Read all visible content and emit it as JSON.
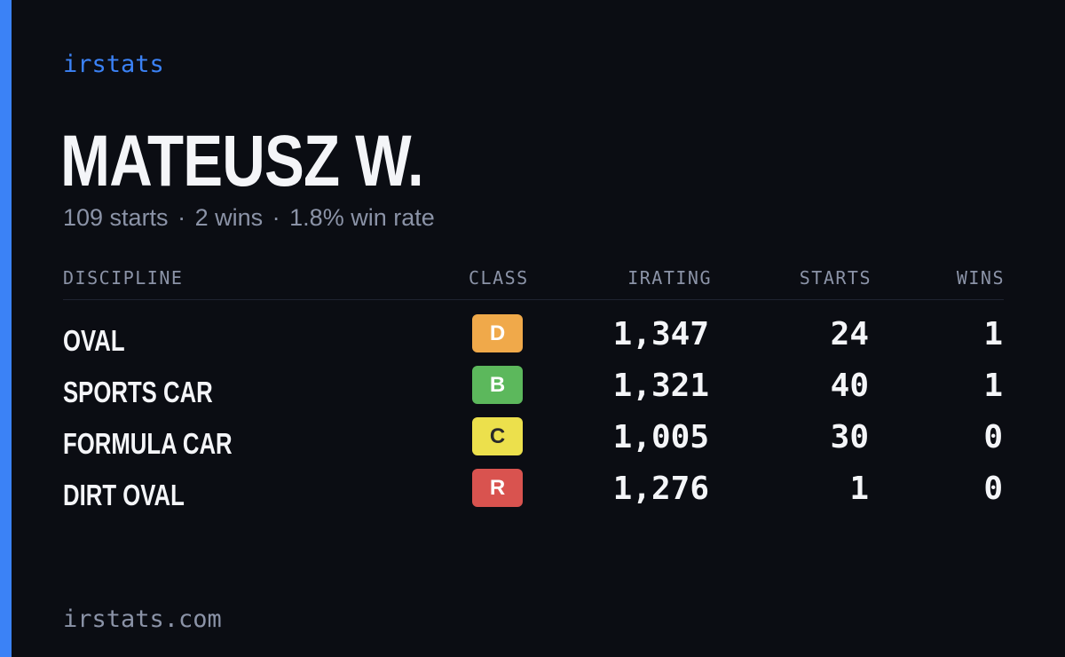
{
  "brand": "irstats",
  "player": {
    "name": "MATEUSZ W."
  },
  "summary": {
    "starts": "109 starts",
    "wins": "2 wins",
    "win_rate": "1.8% win rate",
    "separator": "·"
  },
  "table": {
    "headers": {
      "discipline": "DISCIPLINE",
      "class": "CLASS",
      "irating": "IRATING",
      "starts": "STARTS",
      "wins": "WINS"
    },
    "rows": [
      {
        "discipline": "OVAL",
        "class": "D",
        "class_color": "#f0a94a",
        "class_text_color": "#ffffff",
        "irating": "1,347",
        "starts": "24",
        "wins": "1"
      },
      {
        "discipline": "SPORTS CAR",
        "class": "B",
        "class_color": "#5cb85c",
        "class_text_color": "#ffffff",
        "irating": "1,321",
        "starts": "40",
        "wins": "1"
      },
      {
        "discipline": "FORMULA CAR",
        "class": "C",
        "class_color": "#ece04c",
        "class_text_color": "#2a2a2a",
        "irating": "1,005",
        "starts": "30",
        "wins": "0"
      },
      {
        "discipline": "DIRT OVAL",
        "class": "R",
        "class_color": "#d9534f",
        "class_text_color": "#ffffff",
        "irating": "1,276",
        "starts": "1",
        "wins": "0"
      }
    ]
  },
  "footer": {
    "site": "irstats.com"
  },
  "colors": {
    "background": "#0b0d13",
    "accent": "#3b82f6",
    "text_primary": "#f4f5f8",
    "text_muted": "#8b93a7"
  }
}
